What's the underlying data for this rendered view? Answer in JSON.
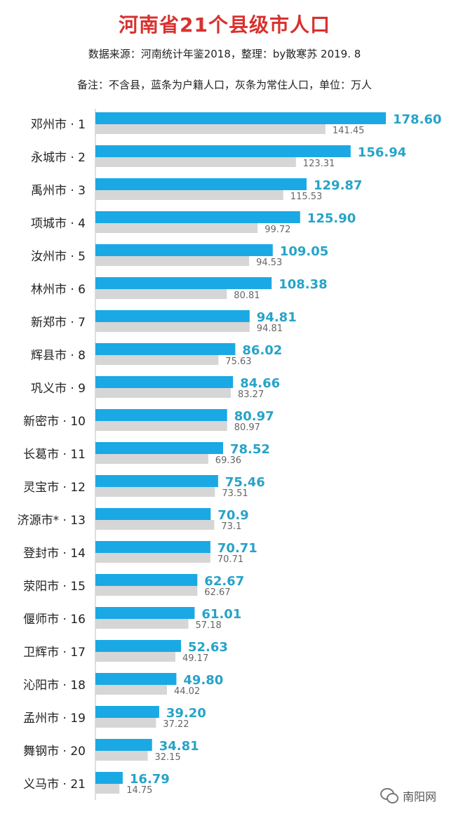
{
  "header": {
    "title": "河南省21个县级市人口",
    "source": "数据来源：河南统计年鉴2018，整理：by散寒苏  2019. 8",
    "note": "备注：不含县，蓝条为户籍人口，灰条为常住人口，单位：万人"
  },
  "watermark": {
    "icon": "wechat-icon",
    "text": "南阳网"
  },
  "colors": {
    "title": "#d8322f",
    "registered_bar": "#1aa9e4",
    "registered_label": "#27a3c8",
    "resident_bar": "#d6d6d6",
    "resident_label": "#666666"
  },
  "chart_data": {
    "type": "bar",
    "orientation": "horizontal",
    "categories": [
      "邓州市 · 1",
      "永城市 · 2",
      "禹州市 · 3",
      "项城市 · 4",
      "汝州市 · 5",
      "林州市 · 6",
      "新郑市 · 7",
      "辉县市 · 8",
      "巩义市 · 9",
      "新密市 · 10",
      "长葛市 · 11",
      "灵宝市 · 12",
      "济源市* · 13",
      "登封市 · 14",
      "荥阳市 · 15",
      "偃师市 · 16",
      "卫辉市 · 17",
      "沁阳市 · 18",
      "孟州市 · 19",
      "舞钢市 · 20",
      "义马市 · 21"
    ],
    "series": [
      {
        "values": [
          178.6,
          156.94,
          129.87,
          125.9,
          109.05,
          108.38,
          94.81,
          86.02,
          84.66,
          80.97,
          78.52,
          75.46,
          70.9,
          70.71,
          62.67,
          61.01,
          52.63,
          49.8,
          39.2,
          34.81,
          16.79
        ],
        "labels": [
          "178.60",
          "156.94",
          "129.87",
          "125.90",
          "109.05",
          "108.38",
          "94.81",
          "86.02",
          "84.66",
          "80.97",
          "78.52",
          "75.46",
          "70.9",
          "70.71",
          "62.67",
          "61.01",
          "52.63",
          "49.80",
          "39.20",
          "34.81",
          "16.79"
        ]
      },
      {
        "values": [
          141.45,
          123.31,
          115.53,
          99.72,
          94.53,
          80.81,
          94.81,
          75.63,
          83.27,
          80.97,
          69.36,
          73.51,
          73.1,
          70.71,
          62.67,
          57.18,
          49.17,
          44.02,
          37.22,
          32.15,
          14.75
        ],
        "labels": [
          "141.45",
          "123.31",
          "115.53",
          "99.72",
          "94.53",
          "80.81",
          "94.81",
          "75.63",
          "83.27",
          "80.97",
          "69.36",
          "73.51",
          "73.1",
          "70.71",
          "62.67",
          "57.18",
          "49.17",
          "44.02",
          "37.22",
          "32.15",
          "14.75"
        ]
      }
    ],
    "xlim": [
      0,
      178.6
    ]
  }
}
